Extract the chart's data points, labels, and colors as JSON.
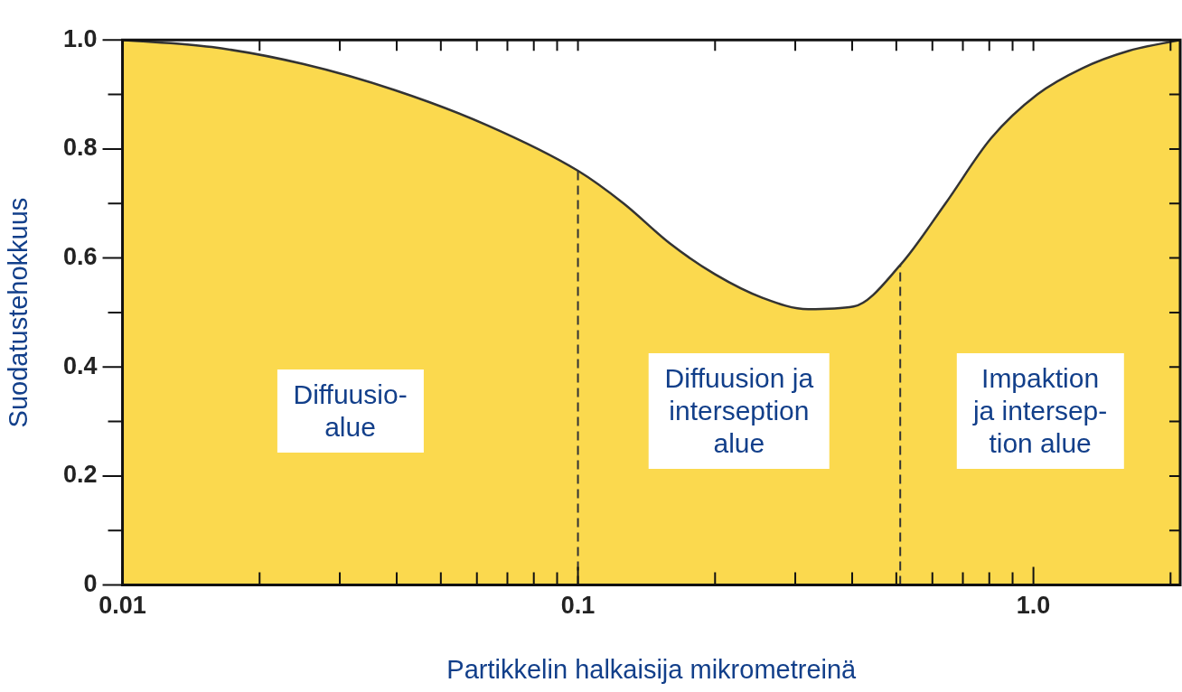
{
  "chart_data": {
    "type": "area",
    "xlabel": "Partikkelin halkaisija mikrometreinä",
    "ylabel": "Suodatustehokkuus",
    "log": "x",
    "x": [
      0.01,
      0.0157,
      0.0249,
      0.0396,
      0.063,
      0.1,
      0.126,
      0.159,
      0.2,
      0.254,
      0.32,
      0.403,
      0.51,
      0.641,
      0.808,
      1.02,
      1.28,
      1.62,
      2.1
    ],
    "series": [
      {
        "color": "#fbd94e",
        "values": [
          1.0,
          0.987,
          0.956,
          0.908,
          0.844,
          0.76,
          0.7,
          0.627,
          0.57,
          0.527,
          0.506,
          0.511,
          0.587,
          0.7,
          0.82,
          0.9,
          0.948,
          0.98,
          1.0
        ]
      }
    ],
    "xlim": [
      0.01,
      2.1
    ],
    "xticks": [
      0.01,
      {
        "value": 0.02,
        "label": null
      },
      {
        "value": 0.03,
        "label": null
      },
      {
        "value": 0.04,
        "label": null
      },
      {
        "value": 0.05,
        "label": null
      },
      {
        "value": 0.06,
        "label": null
      },
      {
        "value": 0.07,
        "label": null
      },
      {
        "value": 0.08,
        "label": null
      },
      {
        "value": 0.09,
        "label": null
      },
      0.1,
      {
        "value": 0.2,
        "label": null
      },
      {
        "value": 0.3,
        "label": null
      },
      {
        "value": 0.4,
        "label": null
      },
      {
        "value": 0.5,
        "label": null
      },
      {
        "value": 0.6,
        "label": null
      },
      {
        "value": 0.7,
        "label": null
      },
      {
        "value": 0.8,
        "label": null
      },
      {
        "value": 0.9,
        "label": null
      },
      {
        "value": 1,
        "label": "1.0"
      },
      {
        "value": 2,
        "label": null
      }
    ],
    "ylim": [
      0,
      1
    ],
    "yticks": [
      0,
      {
        "value": 0.1,
        "label": null
      },
      0.2,
      {
        "value": 0.3,
        "label": null
      },
      0.4,
      {
        "value": 0.5,
        "label": null
      },
      0.6,
      {
        "value": 0.7,
        "label": null
      },
      0.8,
      {
        "value": 0.9,
        "label": null
      },
      {
        "value": 1,
        "label": "1.0"
      }
    ],
    "ref_lines": [
      {
        "axis": "x",
        "value": 0.1,
        "line_style": "dashed",
        "color": "#333333"
      },
      {
        "axis": "x",
        "value": 0.51,
        "line_style": "dashed",
        "color": "#333333"
      }
    ],
    "annotations": [
      "Diffuusio-\nalue",
      "Diffuusion ja\ninterseption\nalue",
      "Impaktion\nja intersep-\ntion alue"
    ],
    "marker": "none",
    "grid": false,
    "legend": false
  }
}
